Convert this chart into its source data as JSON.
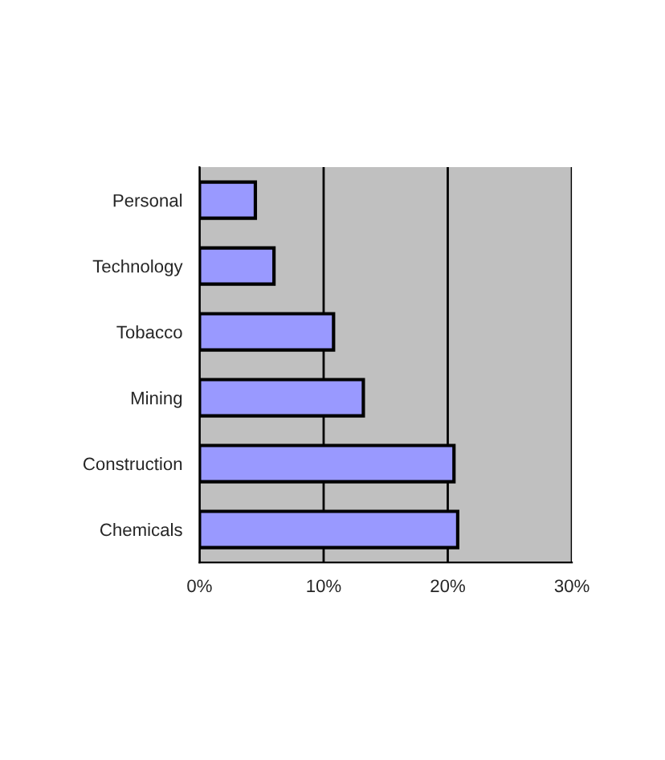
{
  "chart_data": {
    "type": "bar",
    "orientation": "horizontal",
    "categories": [
      "Personal",
      "Technology",
      "Tobacco",
      "Mining",
      "Construction",
      "Chemicals"
    ],
    "values": [
      4.5,
      6,
      10.8,
      13.2,
      20.5,
      20.8
    ],
    "color": "#9999ff",
    "xlim": [
      0,
      30
    ],
    "xticks": [
      {
        "value": 0,
        "label": "0%"
      },
      {
        "value": 10,
        "label": "10%"
      },
      {
        "value": 20,
        "label": "20%"
      },
      {
        "value": 30,
        "label": "30%"
      }
    ],
    "grid": "x"
  }
}
